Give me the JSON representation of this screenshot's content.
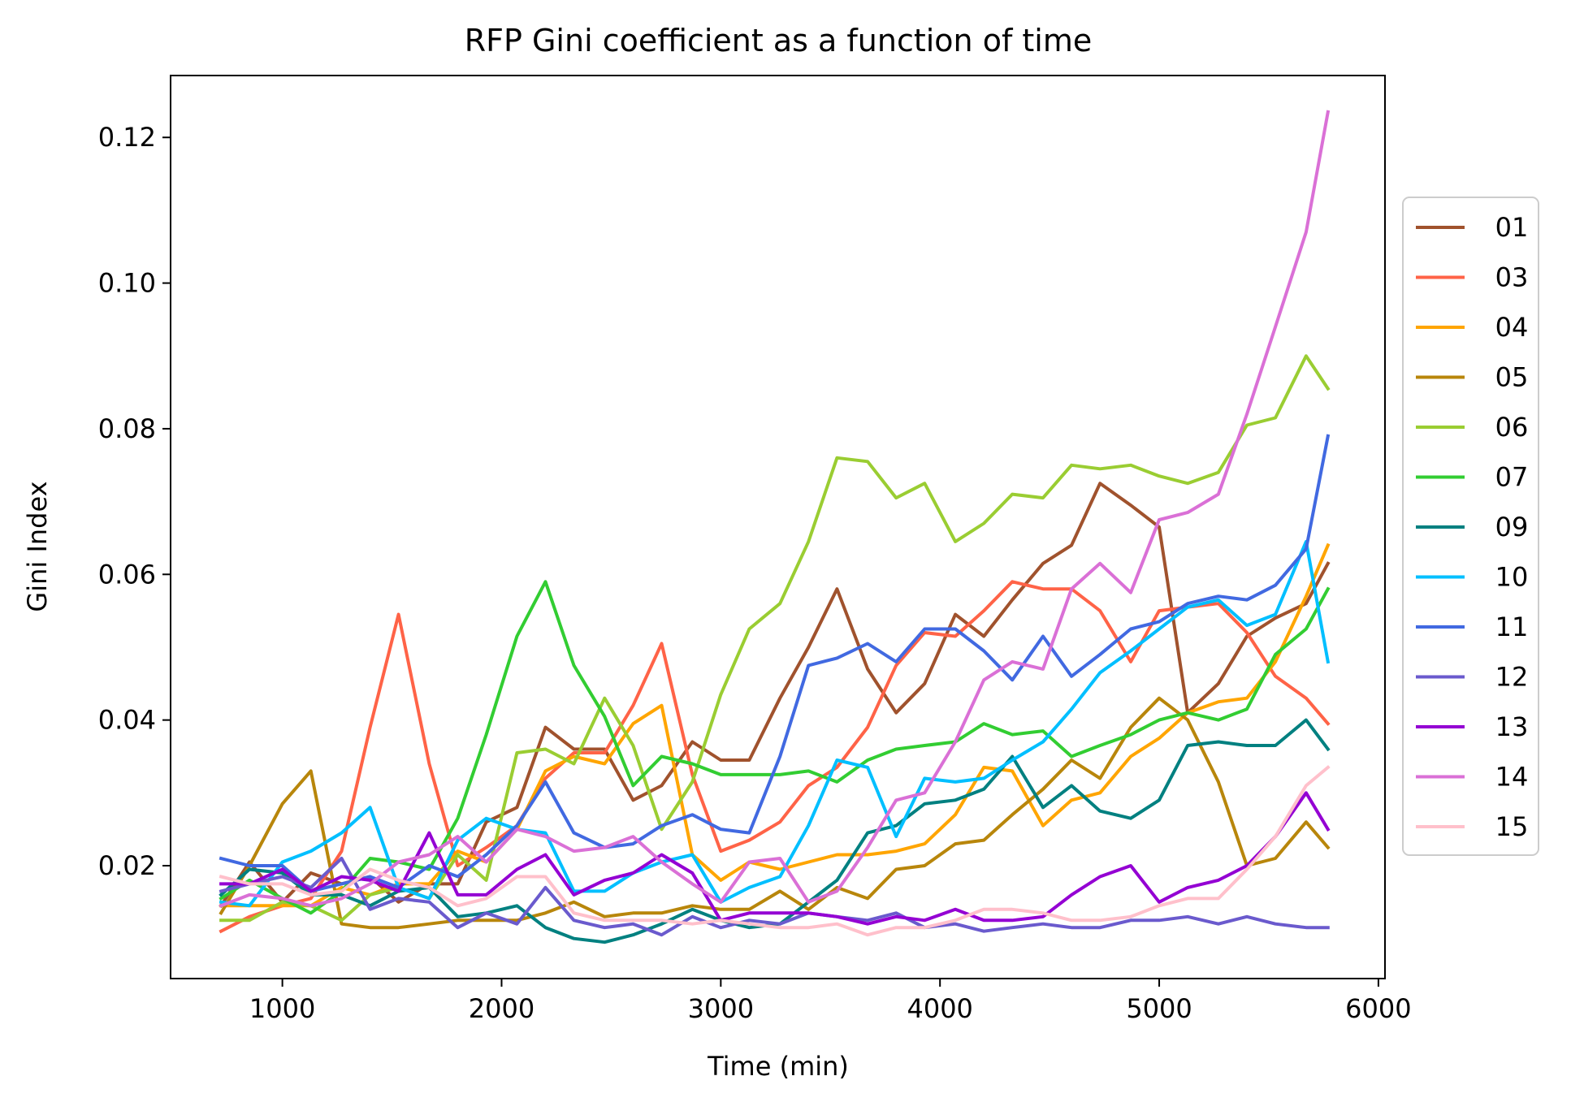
{
  "chart_data": {
    "type": "line",
    "title": "RFP Gini coefficient as a function of time",
    "xlabel": "Time (min)",
    "ylabel": "Gini Index",
    "xlim": [
      490,
      6030
    ],
    "ylim": [
      0.0045,
      0.1285
    ],
    "xticks": [
      1000,
      2000,
      3000,
      4000,
      5000,
      6000
    ],
    "xtick_labels": [
      "1000",
      "2000",
      "3000",
      "4000",
      "5000",
      "6000"
    ],
    "yticks": [
      0.02,
      0.04,
      0.06,
      0.08,
      0.1,
      0.12
    ],
    "ytick_labels": [
      "0.02",
      "0.04",
      "0.06",
      "0.08",
      "0.10",
      "0.12"
    ],
    "grid": false,
    "legend_position": "right, outside plot area",
    "x": [
      720,
      850,
      1000,
      1130,
      1270,
      1400,
      1530,
      1670,
      1800,
      1930,
      2070,
      2200,
      2330,
      2470,
      2600,
      2730,
      2870,
      3000,
      3130,
      3270,
      3400,
      3530,
      3670,
      3800,
      3930,
      4070,
      4200,
      4330,
      4470,
      4600,
      4730,
      4870,
      5000,
      5130,
      5270,
      5400,
      5530,
      5670,
      5770
    ],
    "series": [
      {
        "name": "01",
        "color": "#a0522d",
        "values": [
          0.0145,
          0.0205,
          0.015,
          0.019,
          0.0175,
          0.0185,
          0.015,
          0.0175,
          0.0175,
          0.026,
          0.028,
          0.039,
          0.036,
          0.036,
          0.029,
          0.031,
          0.037,
          0.0345,
          0.0345,
          0.043,
          0.05,
          0.058,
          0.047,
          0.041,
          0.045,
          0.0545,
          0.0515,
          0.0565,
          0.0615,
          0.064,
          0.0725,
          0.0695,
          0.0665,
          0.041,
          0.045,
          0.0515,
          0.054,
          0.056,
          0.0615
        ]
      },
      {
        "name": "03",
        "color": "#ff6347",
        "values": [
          0.011,
          0.013,
          0.0145,
          0.0155,
          0.022,
          0.039,
          0.0545,
          0.034,
          0.02,
          0.0225,
          0.0255,
          0.032,
          0.0355,
          0.0355,
          0.042,
          0.0505,
          0.0325,
          0.022,
          0.0235,
          0.026,
          0.031,
          0.0335,
          0.039,
          0.0475,
          0.052,
          0.0515,
          0.055,
          0.059,
          0.058,
          0.058,
          0.055,
          0.048,
          0.055,
          0.0555,
          0.056,
          0.052,
          0.046,
          0.043,
          0.0395
        ]
      },
      {
        "name": "04",
        "color": "#ffa500",
        "values": [
          0.0145,
          0.0145,
          0.0145,
          0.0145,
          0.017,
          0.016,
          0.0175,
          0.0175,
          0.022,
          0.0205,
          0.025,
          0.033,
          0.035,
          0.034,
          0.0395,
          0.042,
          0.0215,
          0.018,
          0.0205,
          0.0195,
          0.0205,
          0.0215,
          0.0215,
          0.022,
          0.023,
          0.027,
          0.0335,
          0.033,
          0.0255,
          0.029,
          0.03,
          0.035,
          0.0375,
          0.041,
          0.0425,
          0.043,
          0.048,
          0.057,
          0.064
        ]
      },
      {
        "name": "05",
        "color": "#b8860b",
        "values": [
          0.0135,
          0.02,
          0.0285,
          0.033,
          0.012,
          0.0115,
          0.0115,
          0.012,
          0.0125,
          0.0125,
          0.0125,
          0.0135,
          0.015,
          0.013,
          0.0135,
          0.0135,
          0.0145,
          0.014,
          0.014,
          0.0165,
          0.014,
          0.017,
          0.0155,
          0.0195,
          0.02,
          0.023,
          0.0235,
          0.027,
          0.0305,
          0.0345,
          0.032,
          0.039,
          0.043,
          0.04,
          0.0315,
          0.02,
          0.021,
          0.026,
          0.0225
        ]
      },
      {
        "name": "06",
        "color": "#9acd32",
        "values": [
          0.0125,
          0.0125,
          0.015,
          0.0145,
          0.0125,
          0.016,
          0.017,
          0.0155,
          0.0215,
          0.018,
          0.0355,
          0.036,
          0.034,
          0.043,
          0.0365,
          0.025,
          0.0315,
          0.0435,
          0.0525,
          0.056,
          0.0645,
          0.076,
          0.0755,
          0.0705,
          0.0725,
          0.0645,
          0.067,
          0.071,
          0.0705,
          0.075,
          0.0745,
          0.075,
          0.0735,
          0.0725,
          0.074,
          0.0805,
          0.0815,
          0.09,
          0.0855
        ]
      },
      {
        "name": "07",
        "color": "#32cd32",
        "values": [
          0.0155,
          0.018,
          0.0155,
          0.0135,
          0.0165,
          0.021,
          0.0205,
          0.0195,
          0.0265,
          0.038,
          0.0515,
          0.059,
          0.0475,
          0.0405,
          0.031,
          0.035,
          0.034,
          0.0325,
          0.0325,
          0.0325,
          0.033,
          0.0315,
          0.0345,
          0.036,
          0.0365,
          0.037,
          0.0395,
          0.038,
          0.0385,
          0.035,
          0.0365,
          0.038,
          0.04,
          0.041,
          0.04,
          0.0415,
          0.049,
          0.0525,
          0.058
        ]
      },
      {
        "name": "09",
        "color": "#008080",
        "values": [
          0.016,
          0.0195,
          0.019,
          0.016,
          0.016,
          0.0145,
          0.0165,
          0.017,
          0.013,
          0.0135,
          0.0145,
          0.0115,
          0.01,
          0.0095,
          0.0105,
          0.012,
          0.014,
          0.0125,
          0.0115,
          0.012,
          0.015,
          0.018,
          0.0245,
          0.0255,
          0.0285,
          0.029,
          0.0305,
          0.035,
          0.028,
          0.031,
          0.0275,
          0.0265,
          0.029,
          0.0365,
          0.037,
          0.0365,
          0.0365,
          0.04,
          0.036
        ]
      },
      {
        "name": "10",
        "color": "#00bfff",
        "values": [
          0.015,
          0.0145,
          0.0205,
          0.022,
          0.0245,
          0.028,
          0.017,
          0.0155,
          0.0235,
          0.0265,
          0.025,
          0.0245,
          0.0165,
          0.0165,
          0.019,
          0.0205,
          0.0215,
          0.015,
          0.017,
          0.0185,
          0.0255,
          0.0345,
          0.0335,
          0.024,
          0.032,
          0.0315,
          0.032,
          0.0345,
          0.037,
          0.0415,
          0.0465,
          0.0495,
          0.0525,
          0.0555,
          0.0565,
          0.053,
          0.0545,
          0.0645,
          0.048
        ]
      },
      {
        "name": "11",
        "color": "#4169e1",
        "values": [
          0.021,
          0.02,
          0.02,
          0.0165,
          0.0175,
          0.0185,
          0.017,
          0.02,
          0.0185,
          0.0215,
          0.0255,
          0.0315,
          0.0245,
          0.0225,
          0.023,
          0.0255,
          0.027,
          0.025,
          0.0245,
          0.035,
          0.0475,
          0.0485,
          0.0505,
          0.048,
          0.0525,
          0.0525,
          0.0495,
          0.0455,
          0.0515,
          0.046,
          0.049,
          0.0525,
          0.0535,
          0.056,
          0.057,
          0.0565,
          0.0585,
          0.0635,
          0.079
        ]
      },
      {
        "name": "12",
        "color": "#6a5acd",
        "values": [
          0.0165,
          0.0175,
          0.0185,
          0.017,
          0.021,
          0.014,
          0.0155,
          0.015,
          0.0115,
          0.0135,
          0.012,
          0.017,
          0.0125,
          0.0115,
          0.012,
          0.0105,
          0.013,
          0.0115,
          0.0125,
          0.012,
          0.0135,
          0.013,
          0.0125,
          0.0135,
          0.0115,
          0.012,
          0.011,
          0.0115,
          0.012,
          0.0115,
          0.0115,
          0.0125,
          0.0125,
          0.013,
          0.012,
          0.013,
          0.012,
          0.0115,
          0.0115
        ]
      },
      {
        "name": "13",
        "color": "#9400d3",
        "values": [
          0.0175,
          0.0175,
          0.0195,
          0.0165,
          0.0185,
          0.018,
          0.0165,
          0.0245,
          0.016,
          0.016,
          0.0195,
          0.0215,
          0.016,
          0.018,
          0.019,
          0.0215,
          0.019,
          0.0125,
          0.0135,
          0.0135,
          0.0135,
          0.013,
          0.012,
          0.013,
          0.0125,
          0.014,
          0.0125,
          0.0125,
          0.013,
          0.016,
          0.0185,
          0.02,
          0.015,
          0.017,
          0.018,
          0.02,
          0.024,
          0.03,
          0.025
        ]
      },
      {
        "name": "14",
        "color": "#da70d6",
        "values": [
          0.0145,
          0.016,
          0.0155,
          0.0145,
          0.0155,
          0.0175,
          0.0205,
          0.0215,
          0.024,
          0.0205,
          0.025,
          0.024,
          0.022,
          0.0225,
          0.024,
          0.0205,
          0.0175,
          0.015,
          0.0205,
          0.021,
          0.015,
          0.0165,
          0.0225,
          0.029,
          0.03,
          0.037,
          0.0455,
          0.048,
          0.047,
          0.058,
          0.0615,
          0.0575,
          0.0675,
          0.0685,
          0.071,
          0.082,
          0.094,
          0.107,
          0.1235
        ]
      },
      {
        "name": "15",
        "color": "#ffc0cb",
        "values": [
          0.0185,
          0.0175,
          0.0175,
          0.016,
          0.0165,
          0.0195,
          0.018,
          0.017,
          0.0145,
          0.0155,
          0.0185,
          0.0185,
          0.0135,
          0.0125,
          0.0125,
          0.0125,
          0.012,
          0.0125,
          0.012,
          0.0115,
          0.0115,
          0.012,
          0.0105,
          0.0115,
          0.0115,
          0.0125,
          0.014,
          0.014,
          0.0135,
          0.0125,
          0.0125,
          0.013,
          0.0145,
          0.0155,
          0.0155,
          0.0195,
          0.024,
          0.031,
          0.0335
        ]
      }
    ]
  }
}
